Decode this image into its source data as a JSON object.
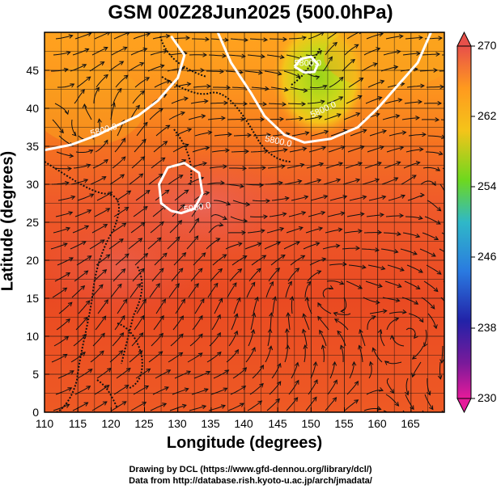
{
  "title": "GSM 00Z28Jun2025 (500.0hPa)",
  "x_axis": {
    "label": "Longitude (degrees)",
    "ticks": [
      "110",
      "115",
      "120",
      "125",
      "130",
      "135",
      "140",
      "145",
      "150",
      "155",
      "160",
      "165"
    ]
  },
  "y_axis": {
    "label": "Latitude  (degrees)",
    "ticks": [
      "0",
      "5",
      "10",
      "15",
      "20",
      "25",
      "30",
      "35",
      "40",
      "45"
    ]
  },
  "colorbar": {
    "ticks": [
      "270",
      "262",
      "254",
      "246",
      "238",
      "230"
    ],
    "colors": [
      "#e8504a",
      "#ff9a1e",
      "#f4c41a",
      "#6ed81e",
      "#2fb8c8",
      "#2a7ae0",
      "#2222a8",
      "#7a1a9a",
      "#e61a9a"
    ]
  },
  "contour_labels": [
    "5800.0",
    "5900.0",
    "5800.0",
    "5800.0",
    "5800.0"
  ],
  "credits": {
    "line1": "Drawing by DCL (https://www.gfd-dennou.org/library/dcl/)",
    "line2": "Data from http://database.rish.kyoto-u.ac.jp/arch/jmadata/"
  },
  "map": {
    "lon_range": [
      110,
      170
    ],
    "lat_range": [
      0,
      50
    ],
    "field": "temperature (K) with 500hPa geopotential height contours and wind streamlines",
    "contours": [
      {
        "value": "5800.0",
        "lonlat": [
          [
            110,
            34.5
          ],
          [
            114,
            35.2
          ],
          [
            118,
            36.5
          ],
          [
            121,
            37.8
          ],
          [
            124,
            39
          ],
          [
            127,
            41
          ],
          [
            130,
            44
          ],
          [
            131,
            47
          ],
          [
            129,
            49.5
          ]
        ]
      },
      {
        "value": "5800.0",
        "lonlat": [
          [
            136,
            50
          ],
          [
            138,
            46
          ],
          [
            141,
            42
          ],
          [
            143,
            39
          ],
          [
            146,
            36.5
          ],
          [
            149,
            35.5
          ],
          [
            153,
            36
          ],
          [
            157,
            37.5
          ],
          [
            160,
            40
          ],
          [
            163,
            43
          ],
          [
            166,
            46
          ],
          [
            168,
            50
          ]
        ]
      },
      {
        "value": "5900.0",
        "lonlat": [
          [
            129,
            26.5
          ],
          [
            127.5,
            27.5
          ],
          [
            127.2,
            30
          ],
          [
            128.5,
            32.2
          ],
          [
            131,
            32.8
          ],
          [
            133.2,
            31.5
          ],
          [
            133.7,
            28.8
          ],
          [
            132.5,
            26.8
          ],
          [
            130.5,
            26.2
          ],
          [
            129,
            26.5
          ]
        ]
      },
      {
        "value": "5800.0",
        "lonlat": [
          [
            147.5,
            45.5
          ],
          [
            148.5,
            46.5
          ],
          [
            150,
            46.8
          ],
          [
            151,
            45.8
          ],
          [
            150.5,
            44.8
          ],
          [
            149,
            44.7
          ],
          [
            147.5,
            45.5
          ]
        ]
      }
    ]
  }
}
